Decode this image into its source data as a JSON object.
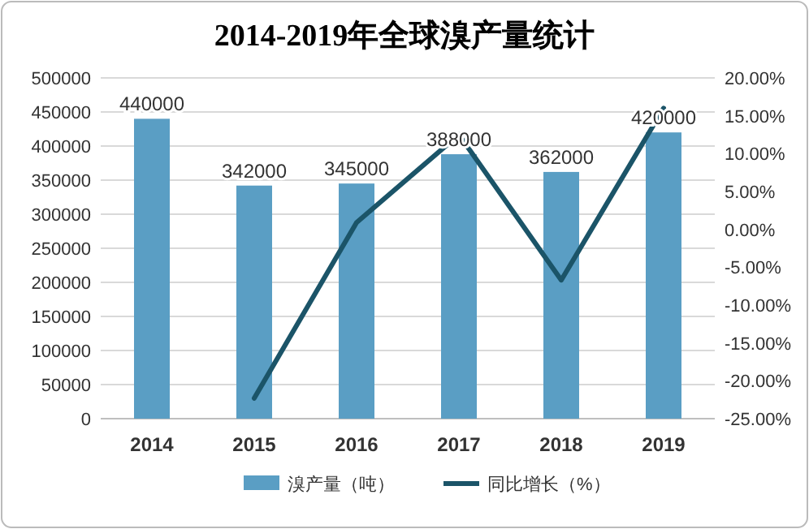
{
  "chart_data": {
    "type": "bar",
    "title": "2014-2019年全球溴产量统计",
    "categories": [
      "2014",
      "2015",
      "2016",
      "2017",
      "2018",
      "2019"
    ],
    "series": [
      {
        "name": "溴产量（吨）",
        "color": "#5a9ec4",
        "values": [
          440000,
          342000,
          345000,
          388000,
          362000,
          420000
        ],
        "value_labels": [
          "440000",
          "342000",
          "345000",
          "388000",
          "362000",
          "420000"
        ]
      },
      {
        "name": "同比增长（%）",
        "type": "line",
        "axis": "y2",
        "color": "#1b5468",
        "values": [
          null,
          -22.3,
          0.9,
          12.5,
          -6.7,
          16.0
        ]
      }
    ],
    "ylim": [
      0,
      500000
    ],
    "yticks": [
      0,
      50000,
      100000,
      150000,
      200000,
      250000,
      300000,
      350000,
      400000,
      450000,
      500000
    ],
    "y2lim": [
      -25,
      20
    ],
    "y2ticks": [
      {
        "value": -25,
        "label": "-25.00%"
      },
      {
        "value": -20,
        "label": "-20.00%"
      },
      {
        "value": -15,
        "label": "-15.00%"
      },
      {
        "value": -10,
        "label": "-10.00%"
      },
      {
        "value": -5,
        "label": "-5.00%"
      },
      {
        "value": 0,
        "label": "0.00%"
      },
      {
        "value": 5,
        "label": "5.00%"
      },
      {
        "value": 10,
        "label": "10.00%"
      },
      {
        "value": 15,
        "label": "15.00%"
      },
      {
        "value": 20,
        "label": "20.00%"
      }
    ],
    "grid": "y",
    "legend": "bottom"
  }
}
